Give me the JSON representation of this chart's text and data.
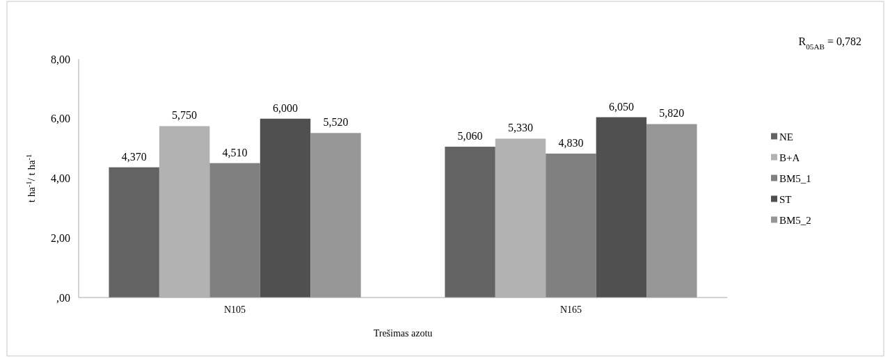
{
  "chart_data": {
    "type": "bar",
    "xlabel": "Trešimas azotu",
    "ylabel": "t ha$^{-1}$/ t ha$^{-1}$",
    "annotations": [
      "R$_{05AB}$ = 0,782"
    ],
    "categories": [
      "N105",
      "N165"
    ],
    "series": [
      {
        "name": "NE",
        "color": "#636363",
        "values": [
          4.37,
          5.06
        ],
        "value_labels": [
          "4,370",
          "5,060"
        ]
      },
      {
        "name": "B+A",
        "color": "#b2b2b2",
        "values": [
          5.75,
          5.33
        ],
        "value_labels": [
          "5,750",
          "5,330"
        ]
      },
      {
        "name": "BM5_1",
        "color": "#808080",
        "values": [
          4.51,
          4.83
        ],
        "value_labels": [
          "4,510",
          "4,830"
        ]
      },
      {
        "name": "ST",
        "color": "#505050",
        "values": [
          6.0,
          6.05
        ],
        "value_labels": [
          "6,000",
          "6,050"
        ]
      },
      {
        "name": "BM5_2",
        "color": "#969696",
        "values": [
          5.52,
          5.82
        ],
        "value_labels": [
          "5,520",
          "5,820"
        ]
      }
    ],
    "ylim": [
      0,
      8
    ],
    "yticks": [
      {
        "value": 0,
        "label": ",00"
      },
      {
        "value": 2,
        "label": "2,00"
      },
      {
        "value": 4,
        "label": "4,00"
      },
      {
        "value": 6,
        "label": "6,00"
      },
      {
        "value": 8,
        "label": "8,00"
      }
    ],
    "grid": false,
    "legend": "right"
  }
}
